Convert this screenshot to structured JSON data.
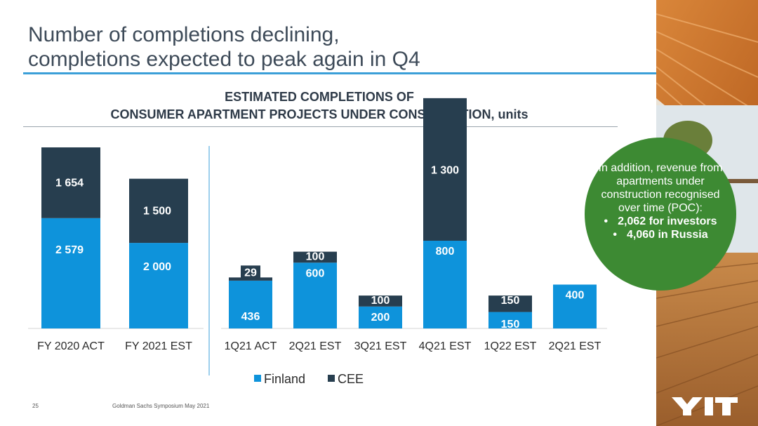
{
  "slide": {
    "title_line1": "Number of completions declining,",
    "title_line2": "completions expected to peak again in Q4",
    "page_number": "25",
    "source": "Goldman Sachs Symposium May 2021",
    "logo_text": "YIT"
  },
  "callout": {
    "text": "In addition, revenue from apartments under construction recognised over time (POC):",
    "bullets": [
      "2,062 for investors",
      "4,060 in Russia"
    ]
  },
  "colors": {
    "finland": "#0e93db",
    "cee": "#273e4f",
    "title": "#3d4a58",
    "accent_rule": "#3b9fd8",
    "callout_bg": "#3d8a33"
  },
  "chart_data": {
    "type": "bar",
    "stacked": true,
    "title_line1": "ESTIMATED COMPLETIONS OF",
    "title_line2": "CONSUMER APARTMENT PROJECTS UNDER CONSTRUCTION, units",
    "legend_position": "bottom",
    "grid": false,
    "series": [
      {
        "name": "Finland",
        "color": "#0e93db"
      },
      {
        "name": "CEE",
        "color": "#273e4f"
      }
    ],
    "panels": [
      {
        "categories": [
          "FY 2020 ACT",
          "FY 2021 EST"
        ],
        "Finland": [
          2579,
          2000
        ],
        "CEE": [
          1654,
          1500
        ],
        "Finland_labels": [
          "2 579",
          "2 000"
        ],
        "CEE_labels": [
          "1 654",
          "1 500"
        ]
      },
      {
        "categories": [
          "1Q21 ACT",
          "2Q21 EST",
          "3Q21 EST",
          "4Q21 EST",
          "1Q22 EST",
          "2Q21 EST"
        ],
        "Finland": [
          436,
          600,
          200,
          800,
          150,
          400
        ],
        "CEE": [
          29,
          100,
          100,
          1300,
          150,
          0
        ],
        "Finland_labels": [
          "436",
          "600",
          "200",
          "800",
          "150",
          "400"
        ],
        "CEE_labels": [
          "29",
          "100",
          "100",
          "1 300",
          "150",
          ""
        ]
      }
    ]
  }
}
